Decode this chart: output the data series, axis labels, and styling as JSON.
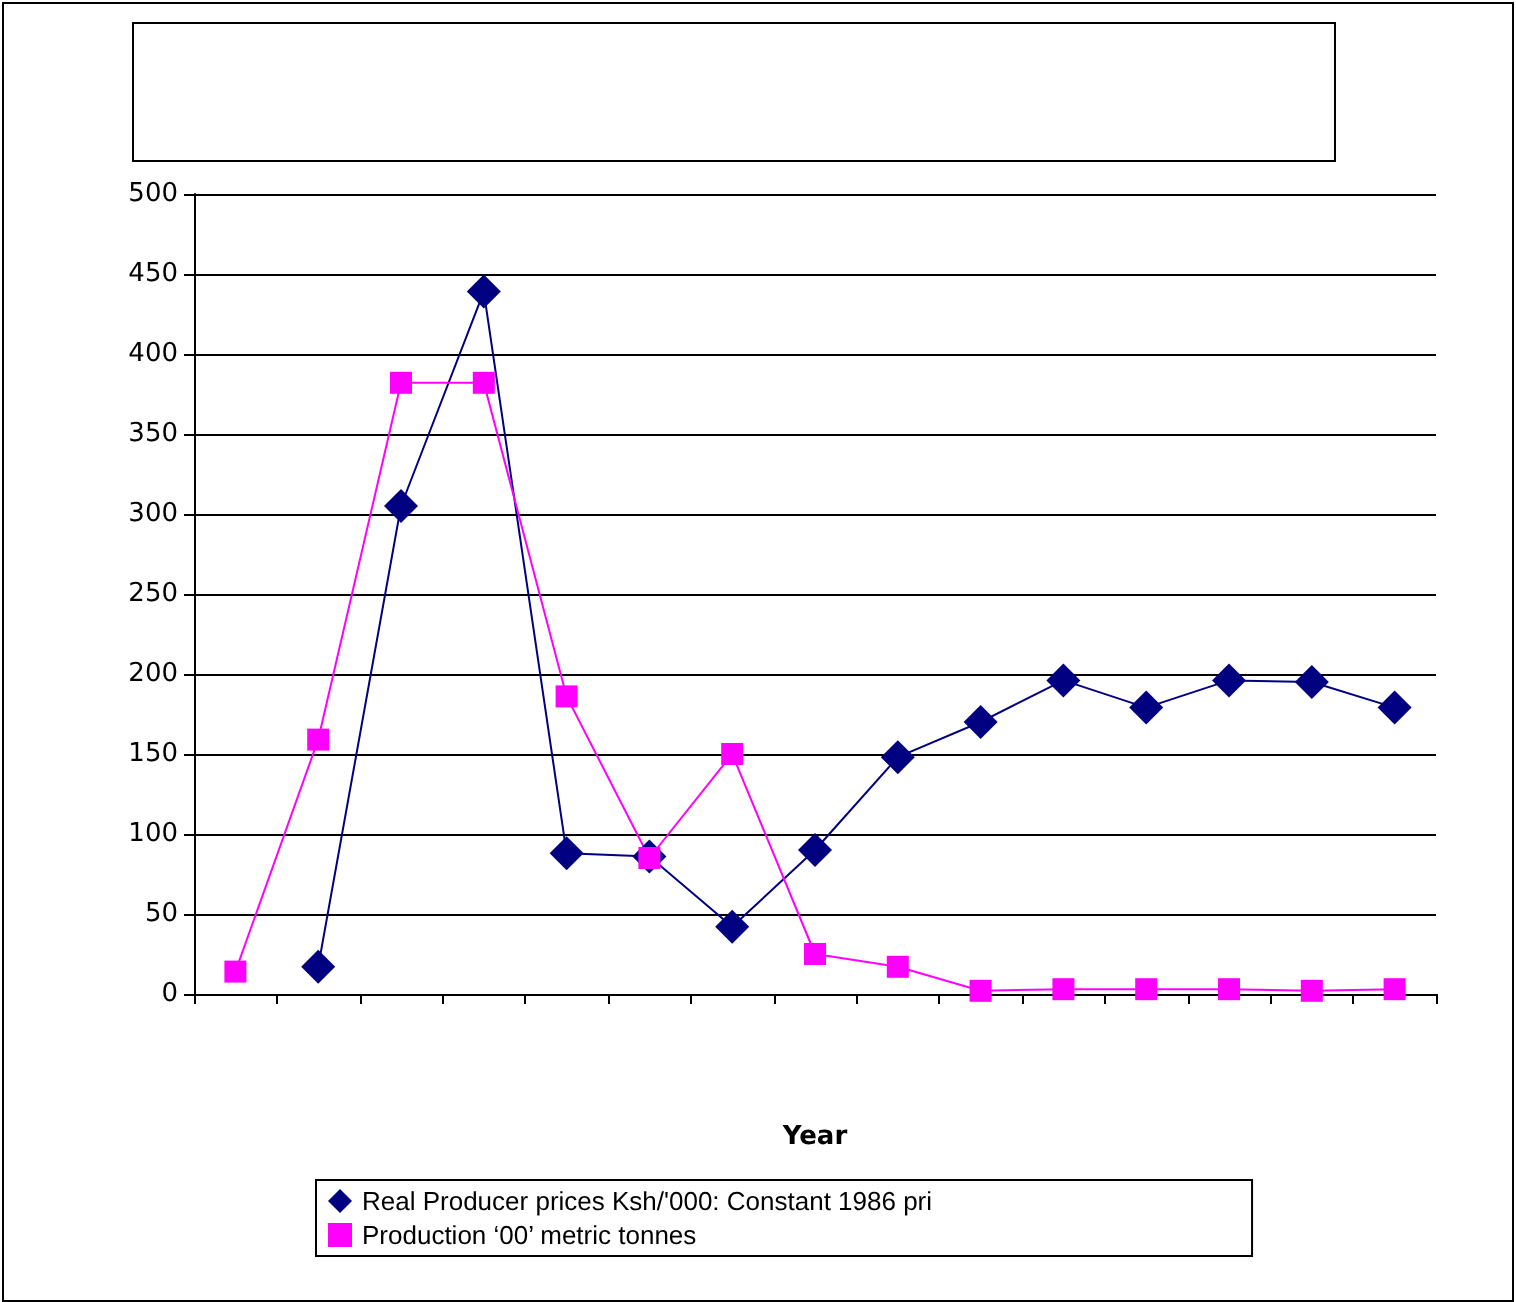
{
  "chart_data": {
    "type": "line",
    "xlabel": "Year",
    "categories": [
      null,
      null,
      null,
      null,
      null,
      null,
      null,
      null,
      null,
      null,
      null,
      null,
      null,
      null,
      null
    ],
    "series": [
      {
        "name": "Real Producer prices Ksh/'000: Constant 1986 pri",
        "color": "#000080",
        "marker": "diamond",
        "values": [
          null,
          17,
          305,
          439,
          88,
          86,
          42,
          90,
          148,
          170,
          196,
          179,
          196,
          195,
          179
        ]
      },
      {
        "name": "Production ‘00’ metric tonnes",
        "color": "#ff00ff",
        "marker": "square",
        "values": [
          14,
          159,
          382,
          382,
          186,
          85,
          150,
          25,
          17,
          2,
          3,
          3,
          3,
          2,
          3
        ]
      }
    ],
    "ylim": [
      0,
      500
    ],
    "yticks": [
      0,
      50,
      100,
      150,
      200,
      250,
      300,
      350,
      400,
      450,
      500
    ],
    "grid": "y",
    "legend": "bottom",
    "line_style": "solid"
  }
}
